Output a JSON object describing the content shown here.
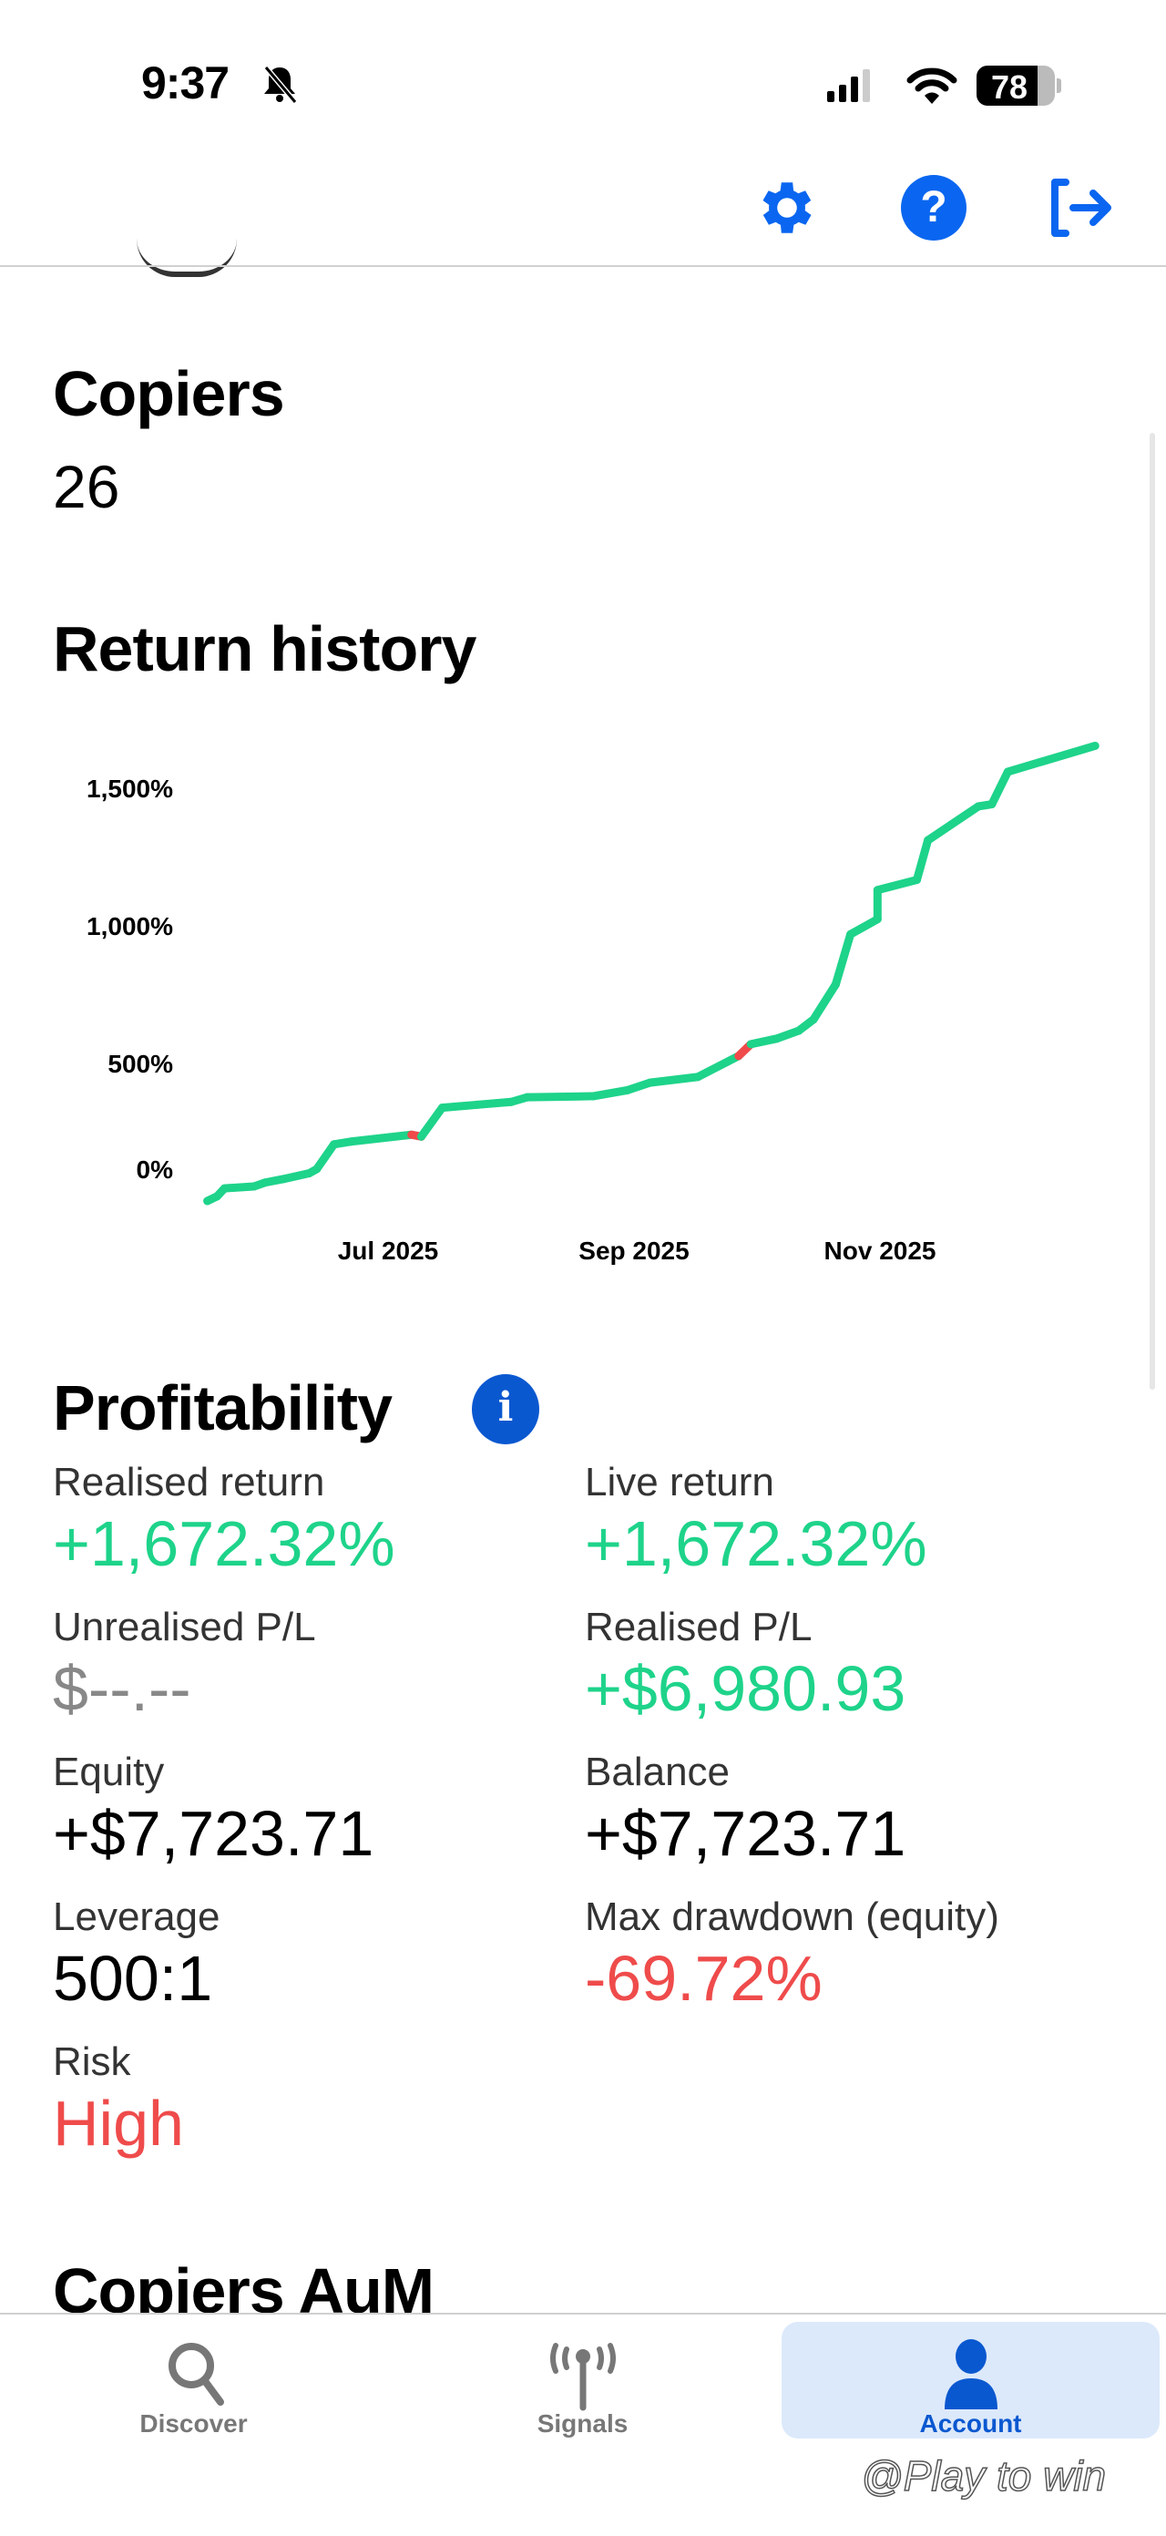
{
  "status_bar": {
    "time": "9:37",
    "battery": "78",
    "icons": [
      "bell-slash-icon",
      "signal-icon",
      "wifi-icon",
      "battery-icon"
    ]
  },
  "header": {
    "icons": [
      "gear-icon",
      "help-icon",
      "logout-icon"
    ]
  },
  "copiers": {
    "title": "Copiers",
    "value": "26"
  },
  "return_history": {
    "title": "Return history"
  },
  "chart_data": {
    "type": "line",
    "title": "Return history",
    "xlabel": "",
    "ylabel": "",
    "x_unit": "month of 2025 (fractional)",
    "x_ticks": [
      {
        "value": 7,
        "label": "Jul 2025"
      },
      {
        "value": 9,
        "label": "Sep 2025"
      },
      {
        "value": 11,
        "label": "Nov 2025"
      }
    ],
    "y_ticks": [
      {
        "value": 0,
        "label": "0%"
      },
      {
        "value": 500,
        "label": "500%"
      },
      {
        "value": 1000,
        "label": "1,000%"
      },
      {
        "value": 1500,
        "label": "1,500%"
      }
    ],
    "ylim": [
      0,
      1700
    ],
    "xlim": [
      5.5,
      12.8
    ],
    "grid": false,
    "colors": {
      "up": "#1ed38a",
      "down": "#ef4b4b"
    },
    "series": [
      {
        "name": "Return",
        "points": [
          [
            5.53,
            0
          ],
          [
            5.61,
            17
          ],
          [
            5.67,
            46
          ],
          [
            5.91,
            53
          ],
          [
            6.0,
            67
          ],
          [
            6.15,
            80
          ],
          [
            6.36,
            101
          ],
          [
            6.42,
            116
          ],
          [
            6.56,
            206
          ],
          [
            6.7,
            216
          ],
          [
            7.19,
            241
          ],
          [
            7.27,
            234
          ],
          [
            7.44,
            339
          ],
          [
            7.73,
            350
          ],
          [
            8.0,
            360
          ],
          [
            8.13,
            377
          ],
          [
            8.67,
            381
          ],
          [
            8.95,
            403
          ],
          [
            9.13,
            430
          ],
          [
            9.52,
            451
          ],
          [
            9.85,
            527
          ],
          [
            9.95,
            570
          ],
          [
            10.16,
            590
          ],
          [
            10.34,
            619
          ],
          [
            10.46,
            660
          ],
          [
            10.64,
            787
          ],
          [
            10.76,
            969
          ],
          [
            10.98,
            1024
          ],
          [
            10.98,
            1130
          ],
          [
            11.3,
            1167
          ],
          [
            11.39,
            1311
          ],
          [
            11.8,
            1434
          ],
          [
            11.91,
            1442
          ],
          [
            12.04,
            1560
          ],
          [
            12.75,
            1654
          ]
        ],
        "down_segments": [
          10,
          20
        ]
      }
    ]
  },
  "profitability": {
    "title": "Profitability",
    "stats": [
      {
        "label": "Realised return",
        "value": "+1,672.32%",
        "tone": "green"
      },
      {
        "label": "Live return",
        "value": "+1,672.32%",
        "tone": "green"
      },
      {
        "label": "Unrealised P/L",
        "value": "$--.--",
        "tone": "grey"
      },
      {
        "label": "Realised P/L",
        "value": "+$6,980.93",
        "tone": "green"
      },
      {
        "label": "Equity",
        "value": "+$7,723.71",
        "tone": "black"
      },
      {
        "label": "Balance",
        "value": "+$7,723.71",
        "tone": "black"
      },
      {
        "label": "Leverage",
        "value": "500:1",
        "tone": "black"
      },
      {
        "label": "Max drawdown (equity)",
        "value": "-69.72%",
        "tone": "red"
      },
      {
        "label": "Risk",
        "value": "High",
        "tone": "red"
      }
    ]
  },
  "copiers_aum": {
    "title": "Copiers AuM"
  },
  "tabs": [
    {
      "label": "Discover",
      "icon": "search-icon",
      "active": false
    },
    {
      "label": "Signals",
      "icon": "antenna-icon",
      "active": false
    },
    {
      "label": "Account",
      "icon": "person-icon",
      "active": true
    }
  ],
  "watermark": "@Play to win",
  "colors": {
    "accent": "#0a66f0",
    "green": "#1ed38a",
    "red": "#ef4b4b"
  }
}
